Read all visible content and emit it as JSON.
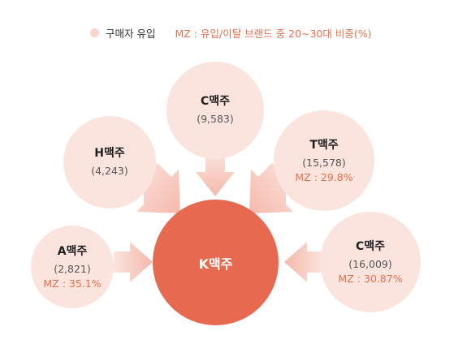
{
  "legend": {
    "main_label": "구매자 유입",
    "mz_label": "MZ : 유입/이탈 브랜드 중 20~30대 비중(%)"
  },
  "center": {
    "name": "K맥주"
  },
  "sources": [
    {
      "id": "c-top",
      "name": "C맥주",
      "count": "(9,583)",
      "mz": ""
    },
    {
      "id": "h",
      "name": "H맥주",
      "count": "(4,243)",
      "mz": ""
    },
    {
      "id": "t",
      "name": "T맥주",
      "count": "(15,578)",
      "mz": "MZ : 29.8%"
    },
    {
      "id": "a",
      "name": "A맥주",
      "count": "(2,821)",
      "mz": "MZ : 35.1%"
    },
    {
      "id": "c-right",
      "name": "C맥주",
      "count": "(16,009)",
      "mz": "MZ : 30.87%"
    }
  ],
  "colors": {
    "center": "#e76a50",
    "bubble": "#fbe3de",
    "arrow": "#f6c1b5",
    "mz_text": "#e8704f"
  }
}
